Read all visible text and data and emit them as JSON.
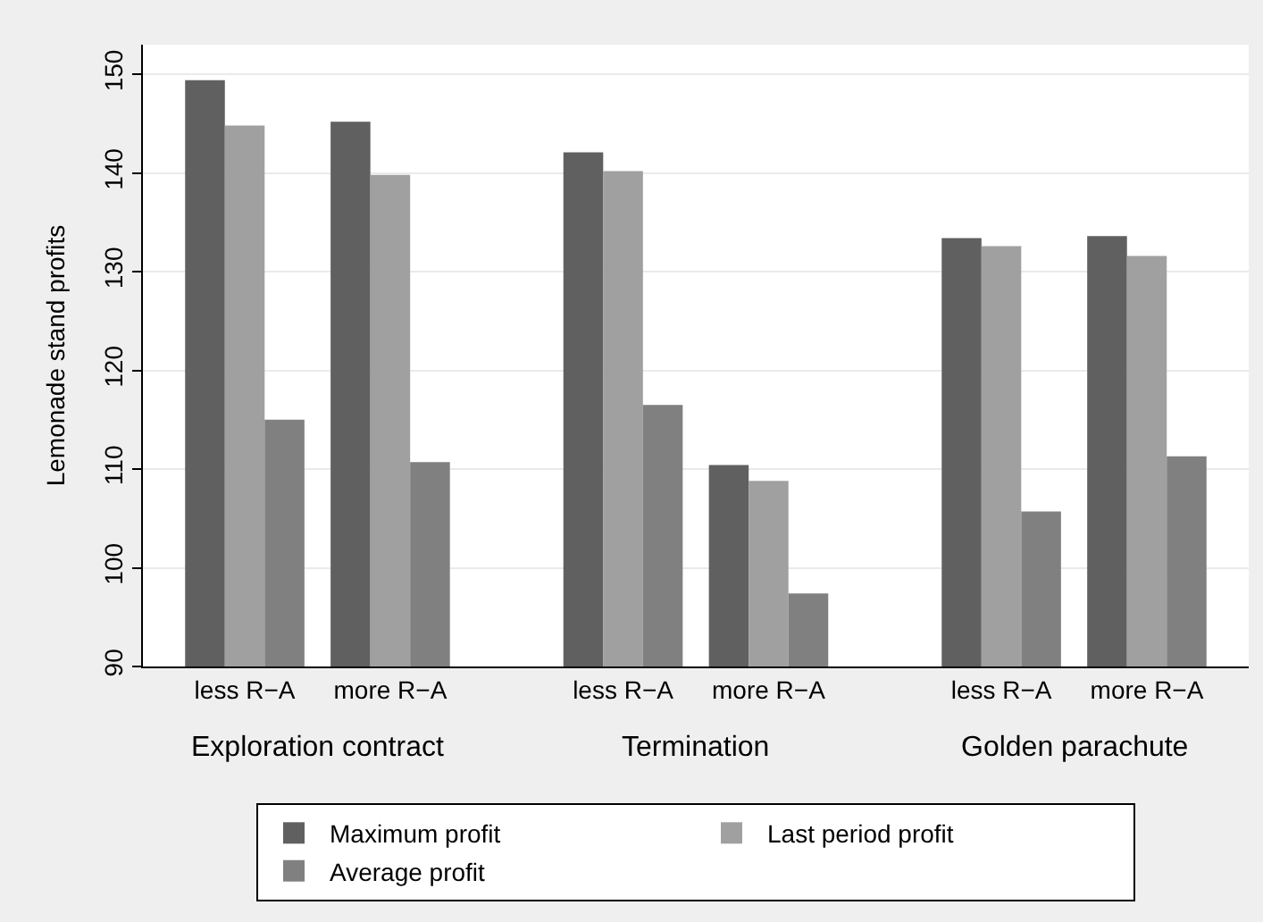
{
  "chart_data": {
    "type": "bar",
    "ylabel": "Lemonade stand profits",
    "categories": [
      "less R−A",
      "more R−A",
      "less R−A",
      "more R−A",
      "less R−A",
      "more R−A"
    ],
    "series": [
      {
        "name": "Maximum profit",
        "color": "#606060",
        "values": [
          149.4,
          145.2,
          142.1,
          110.4,
          133.4,
          133.6
        ]
      },
      {
        "name": "Last period profit",
        "color": "#a0a0a0",
        "values": [
          144.8,
          139.8,
          140.2,
          108.8,
          132.6,
          131.6
        ]
      },
      {
        "name": "Average profit",
        "color": "#808080",
        "values": [
          115.0,
          110.7,
          116.5,
          97.4,
          105.7,
          111.3
        ]
      }
    ],
    "annotations": [
      "Exploration contract",
      "Termination",
      "Golden parachute"
    ],
    "ylim": [
      90,
      153
    ],
    "yticks": [
      90,
      100,
      110,
      120,
      130,
      140,
      150
    ],
    "grid": "y",
    "legend": "bottom"
  }
}
